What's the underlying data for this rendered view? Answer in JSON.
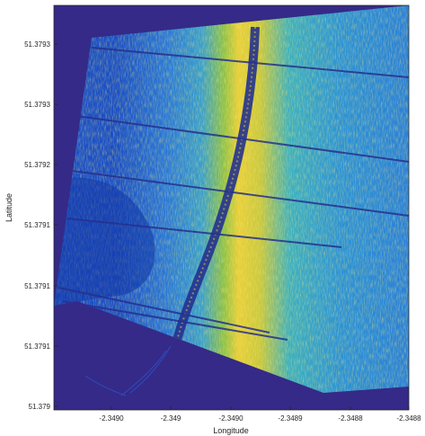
{
  "chart_data": {
    "type": "heatmap",
    "title": "",
    "xlabel": "Longitude",
    "ylabel": "Latitude",
    "x_ticks": [
      "-2.3490",
      "-2.349",
      "-2.3490",
      "-2.3489",
      "-2.3488",
      "-2.3488"
    ],
    "y_ticks": [
      "51.3793",
      "51.3793",
      "51.3792",
      "51.3791",
      "51.3791",
      "51.3791",
      "51.379"
    ],
    "colormap": "parula",
    "colors": {
      "background": "#352a87",
      "low": "#0f5cdd",
      "mid": "#2ca0c9",
      "high": "#84bb3d",
      "peak": "#f9d72c"
    },
    "grid": false,
    "legend": "none"
  }
}
